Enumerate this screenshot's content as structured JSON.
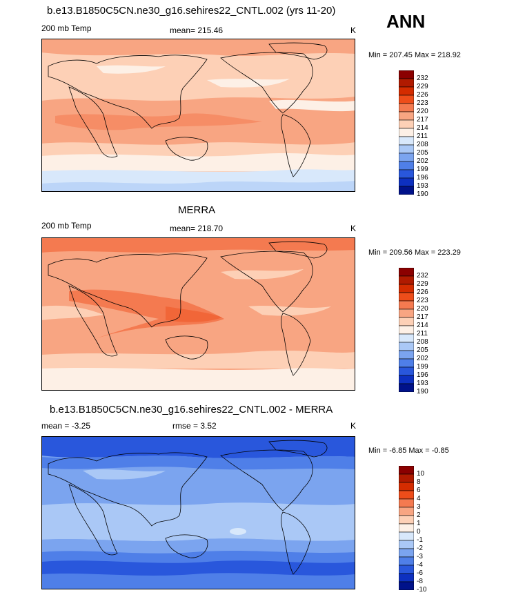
{
  "season": "ANN",
  "panels": [
    {
      "title": "b.e13.B1850C5CN.ne30_g16.sehires22_CNTL.002 (yrs 11-20)",
      "left_label": "200 mb Temp",
      "center_label": "mean= 215.46",
      "units": "K",
      "minmax": "Min = 207.45 Max = 218.92",
      "levels": [
        "232",
        "229",
        "226",
        "223",
        "220",
        "217",
        "214",
        "211",
        "208",
        "205",
        "202",
        "199",
        "196",
        "193",
        "190"
      ],
      "colors": [
        "#8b0000",
        "#b01a00",
        "#d42c00",
        "#ee4d1a",
        "#f47a50",
        "#f8a582",
        "#fdd0b6",
        "#fdf0e6",
        "#d8e8fb",
        "#aac8f6",
        "#7ba4ef",
        "#4f7fe8",
        "#2957dc",
        "#0d30c0",
        "#00128a"
      ]
    },
    {
      "title": "MERRA",
      "left_label": "200 mb Temp",
      "center_label": "mean= 218.70",
      "units": "K",
      "minmax": "Min = 209.56 Max = 223.29",
      "levels": [
        "232",
        "229",
        "226",
        "223",
        "220",
        "217",
        "214",
        "211",
        "208",
        "205",
        "202",
        "199",
        "196",
        "193",
        "190"
      ],
      "colors": [
        "#8b0000",
        "#b01a00",
        "#d42c00",
        "#ee4d1a",
        "#f47a50",
        "#f8a582",
        "#fdd0b6",
        "#fdf0e6",
        "#d8e8fb",
        "#aac8f6",
        "#7ba4ef",
        "#4f7fe8",
        "#2957dc",
        "#0d30c0",
        "#00128a"
      ]
    },
    {
      "title": "b.e13.B1850C5CN.ne30_g16.sehires22_CNTL.002 - MERRA",
      "left_label": "mean =  -3.25",
      "center_label": "rmse =   3.52",
      "units": "K",
      "minmax": "Min =  -6.85 Max =  -0.85",
      "levels": [
        "10",
        "8",
        "6",
        "4",
        "3",
        "2",
        "1",
        "0",
        "-1",
        "-2",
        "-3",
        "-4",
        "-6",
        "-8",
        "-10"
      ],
      "colors": [
        "#8b0000",
        "#b01a00",
        "#d42c00",
        "#ee4d1a",
        "#f47a50",
        "#f8a582",
        "#fdd0b6",
        "#fdf0e6",
        "#d8e8fb",
        "#aac8f6",
        "#7ba4ef",
        "#4f7fe8",
        "#2957dc",
        "#0d30c0",
        "#00128a"
      ]
    }
  ]
}
